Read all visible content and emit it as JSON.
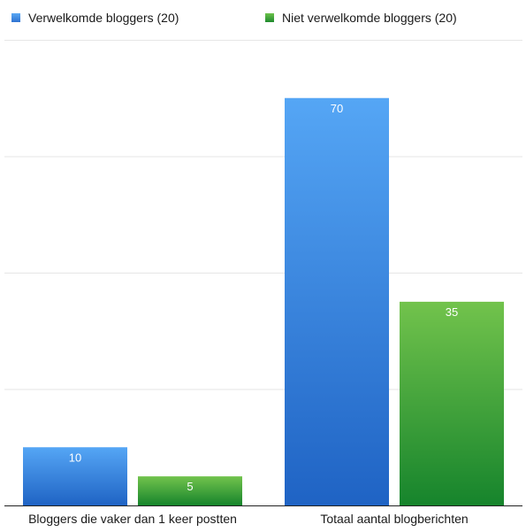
{
  "chart_data": {
    "type": "bar",
    "categories": [
      "Bloggers die vaker dan 1 keer postten",
      "Totaal aantal blogberichten"
    ],
    "series": [
      {
        "name": "Verwelkomde bloggers (20)",
        "values": [
          10,
          70
        ],
        "color": "#3f8fe0"
      },
      {
        "name": "Niet verwelkomde bloggers (20)",
        "values": [
          5,
          35
        ],
        "color": "#3eaa3c"
      }
    ],
    "ylim": [
      0,
      80
    ],
    "grid": true,
    "legend": "top-left",
    "data_labels": true,
    "title": "",
    "xlabel": "",
    "ylabel": ""
  }
}
